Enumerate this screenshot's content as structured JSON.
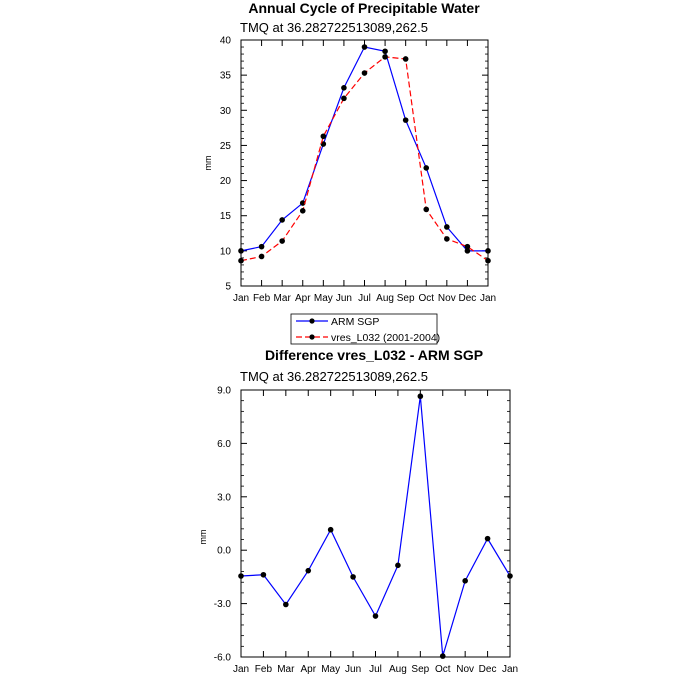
{
  "chart_data": [
    {
      "type": "line",
      "title": "Annual Cycle of Precipitable Water",
      "subtitle": "TMQ at 36.282722513089,262.5",
      "xlabel": "",
      "ylabel": "mm",
      "categories": [
        "Jan",
        "Feb",
        "Mar",
        "Apr",
        "May",
        "Jun",
        "Jul",
        "Aug",
        "Sep",
        "Oct",
        "Nov",
        "Dec",
        "Jan"
      ],
      "ylim": [
        5,
        40
      ],
      "yticks": [
        "5",
        "10",
        "15",
        "20",
        "25",
        "30",
        "35",
        "40"
      ],
      "ytick_values": [
        5,
        10,
        15,
        20,
        25,
        30,
        35,
        40
      ],
      "series": [
        {
          "name": "ARM SGP",
          "color": "#0000ff",
          "dash": "solid",
          "values": [
            10.0,
            10.6,
            14.4,
            16.8,
            25.2,
            33.2,
            39.0,
            38.4,
            28.6,
            21.8,
            13.4,
            10.0,
            10.0
          ]
        },
        {
          "name": "vres_L032 (2001-2004)",
          "color": "#ff0000",
          "dash": "dashed",
          "values": [
            8.6,
            9.2,
            11.4,
            15.7,
            26.3,
            31.7,
            35.3,
            37.6,
            37.3,
            15.9,
            11.7,
            10.6,
            8.6
          ]
        }
      ],
      "legend": "below"
    },
    {
      "type": "line",
      "title": "Difference vres_L032 - ARM SGP",
      "subtitle": "TMQ at 36.282722513089,262.5",
      "xlabel": "",
      "ylabel": "mm",
      "categories": [
        "Jan",
        "Feb",
        "Mar",
        "Apr",
        "May",
        "Jun",
        "Jul",
        "Aug",
        "Sep",
        "Oct",
        "Nov",
        "Dec",
        "Jan"
      ],
      "ylim": [
        -6,
        9
      ],
      "yticks": [
        "-6.0",
        "-3.0",
        "0.0",
        "3.0",
        "6.0",
        "9.0"
      ],
      "ytick_values": [
        -6,
        -3,
        0,
        3,
        6,
        9
      ],
      "series": [
        {
          "name": "",
          "color": "#0000ff",
          "dash": "solid",
          "values": [
            -1.45,
            -1.38,
            -3.05,
            -1.15,
            1.15,
            -1.5,
            -3.7,
            -0.85,
            8.65,
            -5.95,
            -1.72,
            0.65,
            -1.45
          ]
        }
      ]
    }
  ]
}
